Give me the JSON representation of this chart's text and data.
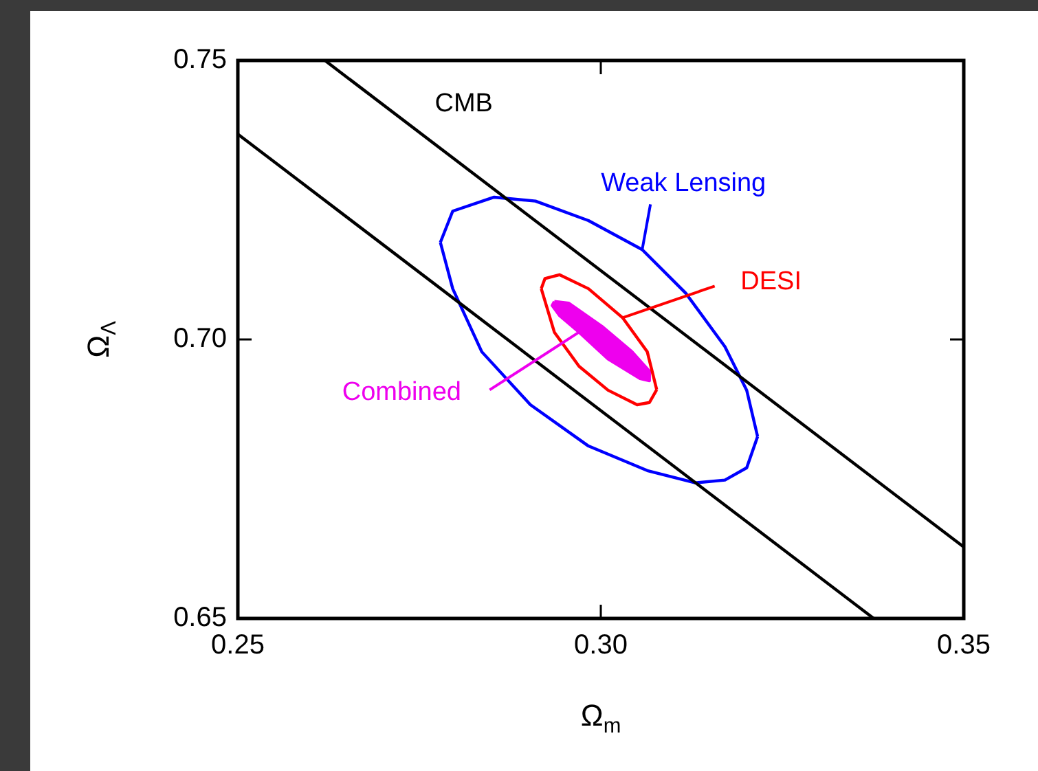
{
  "chart_data": {
    "type": "line",
    "xlabel": "Ω$_{m}$",
    "ylabel": "Ω$_{Λ}$",
    "xlim": [
      0.25,
      0.35
    ],
    "ylim": [
      0.65,
      0.75
    ],
    "xticks": [
      0.25,
      {
        "value": 0.3,
        "label": "0.30"
      },
      0.35
    ],
    "yticks": [
      0.65,
      {
        "value": 0.7,
        "label": "0.70"
      },
      0.75
    ],
    "legend": false,
    "marker": "none",
    "line_style": "solid",
    "series": [
      {
        "name": "CMB",
        "color": "#000000",
        "x": [
          0.262,
          0.35
        ],
        "values": [
          0.75,
          0.6628
        ]
      },
      {
        "color": "#000000",
        "x": [
          0.25,
          0.3376
        ],
        "values": [
          0.7368,
          0.65
        ]
      },
      {
        "name": "Weak Lensing",
        "color": "#0000ff",
        "x": [
          0.2779,
          0.2796,
          0.2853,
          0.291,
          0.2983,
          0.3057,
          0.3117,
          0.3171,
          0.3201,
          0.3216
        ],
        "values": [
          0.7174,
          0.723,
          0.7255,
          0.7248,
          0.7213,
          0.7161,
          0.7083,
          0.6987,
          0.6909,
          0.6826
        ]
      },
      {
        "color": "#0000ff",
        "x": [
          0.2779,
          0.2796,
          0.2836,
          0.2903,
          0.2983,
          0.3064,
          0.313,
          0.3171,
          0.3201,
          0.3216
        ],
        "values": [
          0.7174,
          0.7091,
          0.6978,
          0.6883,
          0.6809,
          0.6765,
          0.6743,
          0.6748,
          0.677,
          0.6826
        ]
      },
      {
        "name": "DESI",
        "color": "#ff0000",
        "x": [
          0.2918,
          0.2923,
          0.2943,
          0.2983,
          0.303,
          0.3064,
          0.3077
        ],
        "values": [
          0.7091,
          0.7109,
          0.7116,
          0.7091,
          0.7039,
          0.6978,
          0.691
        ]
      },
      {
        "color": "#ff0000",
        "x": [
          0.2918,
          0.2936,
          0.297,
          0.301,
          0.305,
          0.3067,
          0.3077
        ],
        "values": [
          0.7091,
          0.7013,
          0.6952,
          0.6909,
          0.6883,
          0.6887,
          0.691
        ]
      },
      {
        "name": "Combined",
        "type": "area",
        "color": "#ee00ee",
        "x": [
          0.2936,
          0.2956,
          0.3003,
          0.3043,
          0.3067,
          0.3067,
          0.3054,
          0.301,
          0.297,
          0.2943,
          0.2933,
          0.2936
        ],
        "values": [
          0.7068,
          0.7065,
          0.7022,
          0.6978,
          0.6943,
          0.6926,
          0.693,
          0.6965,
          0.7013,
          0.7043,
          0.7061,
          0.7068
        ]
      }
    ]
  }
}
